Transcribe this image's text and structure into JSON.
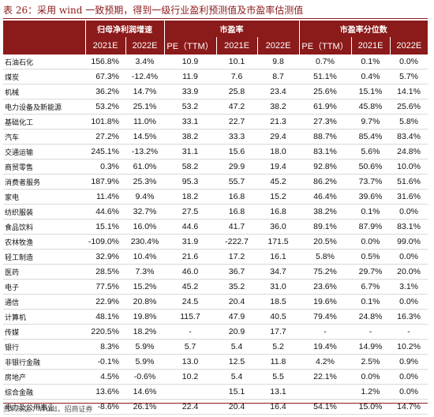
{
  "title": "表 26：采用 wind 一致预期，得到一级行业盈利预测值及市盈率估测值",
  "header": {
    "groups": [
      {
        "key": "blank",
        "label": ""
      },
      {
        "key": "growth",
        "label": "归母净利润增速"
      },
      {
        "key": "pe",
        "label": "市盈率"
      },
      {
        "key": "pct",
        "label": "市盈率分位数"
      }
    ],
    "columns": [
      "2021E",
      "2022E",
      "PE（TTM）",
      "2021E",
      "2022E",
      "PE（TTM）",
      "2021E",
      "2022E"
    ]
  },
  "rows": [
    {
      "name": "石油石化",
      "v": [
        "156.8%",
        "3.4%",
        "10.9",
        "10.1",
        "9.8",
        "0.7%",
        "0.1%",
        "0.0%"
      ]
    },
    {
      "name": "煤炭",
      "v": [
        "67.3%",
        "-12.4%",
        "11.9",
        "7.6",
        "8.7",
        "51.1%",
        "0.4%",
        "5.7%"
      ]
    },
    {
      "name": "机械",
      "v": [
        "36.2%",
        "14.7%",
        "33.9",
        "25.8",
        "23.4",
        "25.6%",
        "15.1%",
        "14.1%"
      ]
    },
    {
      "name": "电力设备及新能源",
      "v": [
        "53.2%",
        "25.1%",
        "53.2",
        "47.2",
        "38.2",
        "61.9%",
        "45.8%",
        "25.6%"
      ]
    },
    {
      "name": "基础化工",
      "v": [
        "101.8%",
        "11.0%",
        "33.1",
        "22.7",
        "21.3",
        "27.3%",
        "9.7%",
        "5.8%"
      ]
    },
    {
      "name": "汽车",
      "v": [
        "27.2%",
        "14.5%",
        "38.2",
        "33.3",
        "29.4",
        "88.7%",
        "85.4%",
        "83.4%"
      ]
    },
    {
      "name": "交通运输",
      "v": [
        "245.1%",
        "-13.2%",
        "31.1",
        "15.6",
        "18.0",
        "83.1%",
        "5.6%",
        "24.8%"
      ]
    },
    {
      "name": "商贸零售",
      "v": [
        "0.3%",
        "61.0%",
        "58.2",
        "29.9",
        "19.4",
        "92.8%",
        "50.6%",
        "10.0%"
      ]
    },
    {
      "name": "消费者服务",
      "v": [
        "187.9%",
        "25.3%",
        "95.3",
        "55.7",
        "45.2",
        "86.2%",
        "73.7%",
        "51.6%"
      ]
    },
    {
      "name": "家电",
      "v": [
        "11.4%",
        "9.4%",
        "18.2",
        "16.8",
        "15.2",
        "46.4%",
        "39.6%",
        "31.6%"
      ]
    },
    {
      "name": "纺织服装",
      "v": [
        "44.6%",
        "32.7%",
        "27.5",
        "16.8",
        "16.8",
        "38.2%",
        "0.1%",
        "0.0%"
      ]
    },
    {
      "name": "食品饮料",
      "v": [
        "15.1%",
        "16.0%",
        "44.6",
        "41.7",
        "36.0",
        "89.1%",
        "87.9%",
        "83.1%"
      ]
    },
    {
      "name": "农林牧渔",
      "v": [
        "-109.0%",
        "230.4%",
        "31.9",
        "-222.7",
        "171.5",
        "20.5%",
        "0.0%",
        "99.0%"
      ]
    },
    {
      "name": "轻工制造",
      "v": [
        "32.9%",
        "10.4%",
        "21.6",
        "17.2",
        "16.1",
        "5.8%",
        "0.5%",
        "0.0%"
      ]
    },
    {
      "name": "医药",
      "v": [
        "28.5%",
        "7.3%",
        "46.0",
        "36.7",
        "34.7",
        "75.2%",
        "29.7%",
        "20.0%"
      ]
    },
    {
      "name": "电子",
      "v": [
        "77.5%",
        "15.2%",
        "45.2",
        "35.2",
        "31.0",
        "23.6%",
        "6.7%",
        "3.1%"
      ]
    },
    {
      "name": "通信",
      "v": [
        "22.9%",
        "20.8%",
        "24.5",
        "20.4",
        "18.5",
        "19.6%",
        "0.1%",
        "0.0%"
      ]
    },
    {
      "name": "计算机",
      "v": [
        "48.1%",
        "19.8%",
        "115.7",
        "47.9",
        "40.5",
        "79.4%",
        "24.8%",
        "16.3%"
      ]
    },
    {
      "name": "传媒",
      "v": [
        "220.5%",
        "18.2%",
        "-",
        "20.9",
        "17.7",
        "-",
        "-",
        "-"
      ]
    },
    {
      "name": "银行",
      "v": [
        "8.3%",
        "5.9%",
        "5.7",
        "5.4",
        "5.2",
        "19.4%",
        "14.9%",
        "10.2%"
      ]
    },
    {
      "name": "非银行金融",
      "v": [
        "-0.1%",
        "5.9%",
        "13.0",
        "12.5",
        "11.8",
        "4.2%",
        "2.5%",
        "0.9%"
      ]
    },
    {
      "name": "房地产",
      "v": [
        "4.5%",
        "-0.6%",
        "10.2",
        "5.4",
        "5.5",
        "22.1%",
        "0.0%",
        "0.0%"
      ]
    },
    {
      "name": "综合金融",
      "v": [
        "13.6%",
        "14.6%",
        "",
        "15.1",
        "13.1",
        "",
        "1.2%",
        "0.0%"
      ]
    },
    {
      "name": "电力及公用事业",
      "v": [
        "-8.6%",
        "26.1%",
        "22.4",
        "20.4",
        "16.4",
        "54.1%",
        "15.0%",
        "14.7%"
      ]
    }
  ],
  "footer": "资料来源：Wind，招商证券"
}
